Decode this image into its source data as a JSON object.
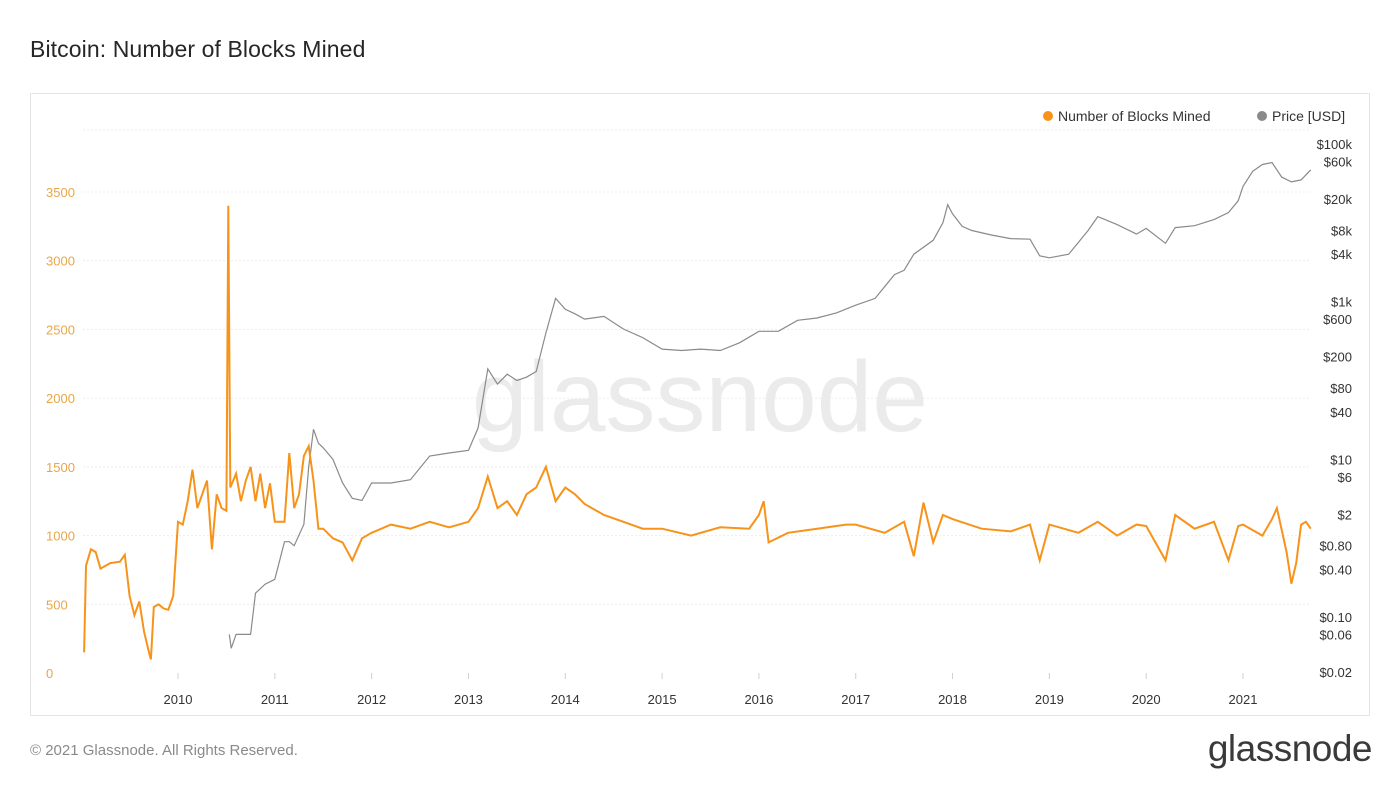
{
  "title": "Bitcoin: Number of Blocks Mined",
  "footer": {
    "copyright": "© 2021 Glassnode. All Rights Reserved.",
    "logo": "glassnode"
  },
  "watermark": "glassnode",
  "colors": {
    "blocks": "#f7931a",
    "price": "#8a8a8a",
    "left_axis_text": "#e8a64a",
    "grid": "#ececec"
  },
  "chart_data": {
    "type": "line",
    "title": "Bitcoin: Number of Blocks Mined",
    "legend": [
      "Number of Blocks Mined",
      "Price [USD]"
    ],
    "legend_position": "top-right",
    "x_ticks": [
      "2010",
      "2011",
      "2012",
      "2013",
      "2014",
      "2015",
      "2016",
      "2017",
      "2018",
      "2019",
      "2020",
      "2021"
    ],
    "y_left": {
      "ticks": [
        0,
        500,
        1000,
        1500,
        2000,
        2500,
        3000,
        3500
      ],
      "ylim": [
        0,
        3500
      ]
    },
    "y_right": {
      "scale": "log",
      "ticks": [
        {
          "v": 100000,
          "label": "$100k"
        },
        {
          "v": 60000,
          "label": "$60k"
        },
        {
          "v": 20000,
          "label": "$20k"
        },
        {
          "v": 8000,
          "label": "$8k"
        },
        {
          "v": 4000,
          "label": "$4k"
        },
        {
          "v": 1000,
          "label": "$1k"
        },
        {
          "v": 600,
          "label": "$600"
        },
        {
          "v": 200,
          "label": "$200"
        },
        {
          "v": 80,
          "label": "$80"
        },
        {
          "v": 40,
          "label": "$40"
        },
        {
          "v": 10,
          "label": "$10"
        },
        {
          "v": 6,
          "label": "$6"
        },
        {
          "v": 2,
          "label": "$2"
        },
        {
          "v": 0.8,
          "label": "$0.80"
        },
        {
          "v": 0.4,
          "label": "$0.40"
        },
        {
          "v": 0.1,
          "label": "$0.10"
        },
        {
          "v": 0.06,
          "label": "$0.06"
        },
        {
          "v": 0.02,
          "label": "$0.02"
        }
      ]
    },
    "series": [
      {
        "name": "Number of Blocks Mined",
        "axis": "left",
        "points": [
          [
            2009.03,
            150
          ],
          [
            2009.05,
            780
          ],
          [
            2009.1,
            900
          ],
          [
            2009.15,
            880
          ],
          [
            2009.2,
            760
          ],
          [
            2009.3,
            800
          ],
          [
            2009.4,
            810
          ],
          [
            2009.45,
            860
          ],
          [
            2009.5,
            560
          ],
          [
            2009.55,
            420
          ],
          [
            2009.6,
            520
          ],
          [
            2009.65,
            300
          ],
          [
            2009.7,
            150
          ],
          [
            2009.72,
            100
          ],
          [
            2009.75,
            480
          ],
          [
            2009.8,
            500
          ],
          [
            2009.85,
            470
          ],
          [
            2009.9,
            460
          ],
          [
            2009.95,
            560
          ],
          [
            2010.0,
            1100
          ],
          [
            2010.05,
            1080
          ],
          [
            2010.1,
            1250
          ],
          [
            2010.15,
            1480
          ],
          [
            2010.2,
            1200
          ],
          [
            2010.25,
            1300
          ],
          [
            2010.3,
            1400
          ],
          [
            2010.35,
            900
          ],
          [
            2010.4,
            1300
          ],
          [
            2010.45,
            1200
          ],
          [
            2010.5,
            1180
          ],
          [
            2010.52,
            3400
          ],
          [
            2010.54,
            1350
          ],
          [
            2010.6,
            1450
          ],
          [
            2010.65,
            1250
          ],
          [
            2010.7,
            1400
          ],
          [
            2010.75,
            1500
          ],
          [
            2010.8,
            1250
          ],
          [
            2010.85,
            1450
          ],
          [
            2010.9,
            1200
          ],
          [
            2010.95,
            1380
          ],
          [
            2011.0,
            1100
          ],
          [
            2011.1,
            1100
          ],
          [
            2011.15,
            1600
          ],
          [
            2011.2,
            1200
          ],
          [
            2011.25,
            1300
          ],
          [
            2011.3,
            1580
          ],
          [
            2011.35,
            1650
          ],
          [
            2011.4,
            1400
          ],
          [
            2011.45,
            1050
          ],
          [
            2011.5,
            1050
          ],
          [
            2011.6,
            980
          ],
          [
            2011.7,
            950
          ],
          [
            2011.8,
            820
          ],
          [
            2011.9,
            980
          ],
          [
            2012.0,
            1020
          ],
          [
            2012.2,
            1080
          ],
          [
            2012.4,
            1050
          ],
          [
            2012.6,
            1100
          ],
          [
            2012.8,
            1060
          ],
          [
            2013.0,
            1100
          ],
          [
            2013.1,
            1200
          ],
          [
            2013.2,
            1430
          ],
          [
            2013.3,
            1200
          ],
          [
            2013.4,
            1250
          ],
          [
            2013.5,
            1150
          ],
          [
            2013.6,
            1300
          ],
          [
            2013.7,
            1350
          ],
          [
            2013.8,
            1500
          ],
          [
            2013.9,
            1250
          ],
          [
            2014.0,
            1350
          ],
          [
            2014.1,
            1300
          ],
          [
            2014.2,
            1230
          ],
          [
            2014.4,
            1150
          ],
          [
            2014.6,
            1100
          ],
          [
            2014.8,
            1050
          ],
          [
            2015.0,
            1050
          ],
          [
            2015.3,
            1000
          ],
          [
            2015.6,
            1060
          ],
          [
            2015.9,
            1050
          ],
          [
            2016.0,
            1150
          ],
          [
            2016.05,
            1250
          ],
          [
            2016.1,
            950
          ],
          [
            2016.3,
            1020
          ],
          [
            2016.6,
            1050
          ],
          [
            2016.9,
            1080
          ],
          [
            2017.0,
            1080
          ],
          [
            2017.3,
            1020
          ],
          [
            2017.5,
            1100
          ],
          [
            2017.6,
            850
          ],
          [
            2017.7,
            1240
          ],
          [
            2017.8,
            950
          ],
          [
            2017.9,
            1150
          ],
          [
            2018.0,
            1120
          ],
          [
            2018.3,
            1050
          ],
          [
            2018.6,
            1030
          ],
          [
            2018.8,
            1080
          ],
          [
            2018.9,
            820
          ],
          [
            2019.0,
            1080
          ],
          [
            2019.3,
            1020
          ],
          [
            2019.5,
            1100
          ],
          [
            2019.7,
            1000
          ],
          [
            2019.9,
            1080
          ],
          [
            2020.0,
            1070
          ],
          [
            2020.2,
            820
          ],
          [
            2020.3,
            1150
          ],
          [
            2020.5,
            1050
          ],
          [
            2020.7,
            1100
          ],
          [
            2020.85,
            820
          ],
          [
            2020.95,
            1070
          ],
          [
            2021.0,
            1080
          ],
          [
            2021.2,
            1000
          ],
          [
            2021.3,
            1120
          ],
          [
            2021.35,
            1200
          ],
          [
            2021.45,
            880
          ],
          [
            2021.5,
            650
          ],
          [
            2021.55,
            800
          ],
          [
            2021.6,
            1080
          ],
          [
            2021.65,
            1100
          ],
          [
            2021.7,
            1050
          ]
        ]
      },
      {
        "name": "Price [USD]",
        "axis": "right",
        "points": [
          [
            2010.53,
            0.06
          ],
          [
            2010.55,
            0.04
          ],
          [
            2010.6,
            0.06
          ],
          [
            2010.7,
            0.06
          ],
          [
            2010.75,
            0.06
          ],
          [
            2010.8,
            0.2
          ],
          [
            2010.9,
            0.26
          ],
          [
            2011.0,
            0.3
          ],
          [
            2011.1,
            0.9
          ],
          [
            2011.15,
            0.9
          ],
          [
            2011.2,
            0.8
          ],
          [
            2011.3,
            1.5
          ],
          [
            2011.35,
            8.0
          ],
          [
            2011.4,
            24
          ],
          [
            2011.45,
            16
          ],
          [
            2011.5,
            14
          ],
          [
            2011.6,
            10
          ],
          [
            2011.7,
            5
          ],
          [
            2011.8,
            3.2
          ],
          [
            2011.9,
            3
          ],
          [
            2012.0,
            5
          ],
          [
            2012.2,
            5
          ],
          [
            2012.4,
            5.5
          ],
          [
            2012.6,
            11
          ],
          [
            2012.8,
            12
          ],
          [
            2013.0,
            13
          ],
          [
            2013.1,
            25
          ],
          [
            2013.2,
            140
          ],
          [
            2013.3,
            90
          ],
          [
            2013.4,
            120
          ],
          [
            2013.5,
            100
          ],
          [
            2013.6,
            110
          ],
          [
            2013.7,
            130
          ],
          [
            2013.8,
            400
          ],
          [
            2013.9,
            1100
          ],
          [
            2014.0,
            800
          ],
          [
            2014.1,
            700
          ],
          [
            2014.2,
            600
          ],
          [
            2014.4,
            650
          ],
          [
            2014.6,
            450
          ],
          [
            2014.8,
            350
          ],
          [
            2015.0,
            250
          ],
          [
            2015.2,
            240
          ],
          [
            2015.4,
            250
          ],
          [
            2015.6,
            240
          ],
          [
            2015.8,
            300
          ],
          [
            2016.0,
            420
          ],
          [
            2016.2,
            420
          ],
          [
            2016.4,
            580
          ],
          [
            2016.6,
            620
          ],
          [
            2016.8,
            720
          ],
          [
            2017.0,
            900
          ],
          [
            2017.2,
            1100
          ],
          [
            2017.4,
            2200
          ],
          [
            2017.5,
            2500
          ],
          [
            2017.6,
            4000
          ],
          [
            2017.8,
            6000
          ],
          [
            2017.9,
            10000
          ],
          [
            2017.95,
            17000
          ],
          [
            2018.0,
            13000
          ],
          [
            2018.1,
            9000
          ],
          [
            2018.2,
            8000
          ],
          [
            2018.4,
            7000
          ],
          [
            2018.6,
            6300
          ],
          [
            2018.8,
            6200
          ],
          [
            2018.9,
            3800
          ],
          [
            2019.0,
            3600
          ],
          [
            2019.2,
            4000
          ],
          [
            2019.4,
            8000
          ],
          [
            2019.5,
            12000
          ],
          [
            2019.7,
            9500
          ],
          [
            2019.9,
            7200
          ],
          [
            2020.0,
            8500
          ],
          [
            2020.2,
            5500
          ],
          [
            2020.3,
            8700
          ],
          [
            2020.5,
            9200
          ],
          [
            2020.7,
            11000
          ],
          [
            2020.85,
            13500
          ],
          [
            2020.95,
            19000
          ],
          [
            2021.0,
            29000
          ],
          [
            2021.1,
            45000
          ],
          [
            2021.2,
            55000
          ],
          [
            2021.3,
            58000
          ],
          [
            2021.4,
            38000
          ],
          [
            2021.5,
            33000
          ],
          [
            2021.6,
            35000
          ],
          [
            2021.7,
            47000
          ]
        ]
      }
    ]
  }
}
